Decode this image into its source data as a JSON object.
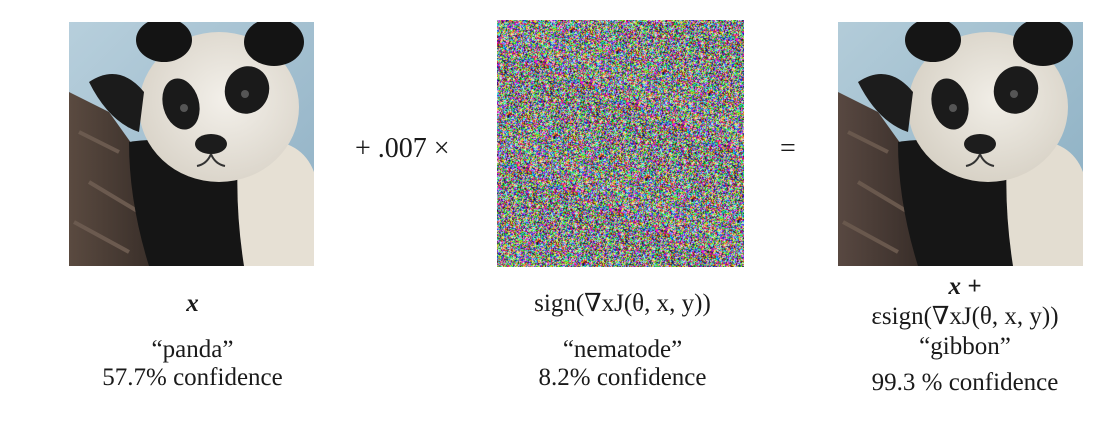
{
  "figure": {
    "panels": [
      {
        "symbol": "x",
        "label": "“panda”",
        "confidence": "57.7% confidence"
      },
      {
        "symbol": "sign(∇xJ(θ, x, y))",
        "label": "“nematode”",
        "confidence": "8.2% confidence"
      },
      {
        "symbol_line1": "x +",
        "symbol_line2": "εsign(∇xJ(θ, x, y))",
        "label": "“gibbon”",
        "confidence": "99.3 % confidence"
      }
    ],
    "operators": {
      "plus": "+ .007 ×",
      "equals": "="
    }
  },
  "colors": {
    "background": "#ffffff",
    "text": "#1a1a1a"
  }
}
